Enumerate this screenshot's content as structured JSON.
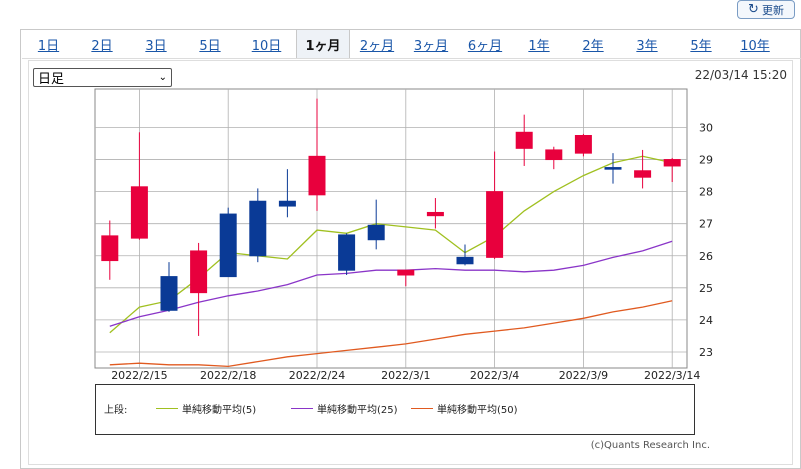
{
  "toolbar": {
    "refresh_label": "更新",
    "refresh_icon": "refresh-icon"
  },
  "tabs": [
    {
      "label": "1日"
    },
    {
      "label": "2日"
    },
    {
      "label": "3日"
    },
    {
      "label": "5日"
    },
    {
      "label": "10日"
    },
    {
      "label": "1ヶ月"
    },
    {
      "label": "2ヶ月"
    },
    {
      "label": "3ヶ月"
    },
    {
      "label": "6ヶ月"
    },
    {
      "label": "1年"
    },
    {
      "label": "2年"
    },
    {
      "label": "3年"
    },
    {
      "label": "5年"
    },
    {
      "label": "10年"
    }
  ],
  "active_tab": "1ヶ月",
  "period_select": {
    "value": "日足"
  },
  "timestamp": "22/03/14 15:20",
  "legend": {
    "prefix": "上段:",
    "items": [
      {
        "label": "単純移動平均(5)",
        "color": "#a0c020"
      },
      {
        "label": "単純移動平均(25)",
        "color": "#8a35c8"
      },
      {
        "label": "単純移動平均(50)",
        "color": "#e05a20"
      }
    ]
  },
  "credit": "(c)Quants Research Inc.",
  "colors": {
    "up": "#e8003d",
    "down": "#0a3a96",
    "grid": "#b0b0b0"
  },
  "chart_data": {
    "type": "candlestick",
    "ylim": [
      22.5,
      31.2
    ],
    "yticks": [
      23,
      24,
      25,
      26,
      27,
      28,
      29,
      30
    ],
    "grid": true,
    "x_tick_labels": [
      {
        "label": "2022/2/15",
        "index": 1
      },
      {
        "label": "2022/2/18",
        "index": 4
      },
      {
        "label": "2022/2/24",
        "index": 7
      },
      {
        "label": "2022/3/1",
        "index": 10
      },
      {
        "label": "2022/3/4",
        "index": 13
      },
      {
        "label": "2022/3/9",
        "index": 16
      },
      {
        "label": "2022/3/14",
        "index": 19
      }
    ],
    "candles": [
      {
        "open": 25.85,
        "high": 27.1,
        "low": 25.25,
        "close": 26.62
      },
      {
        "open": 26.55,
        "high": 29.85,
        "low": 26.5,
        "close": 28.15
      },
      {
        "open": 25.35,
        "high": 25.8,
        "low": 24.25,
        "close": 24.3
      },
      {
        "open": 24.85,
        "high": 26.4,
        "low": 23.5,
        "close": 26.15
      },
      {
        "open": 27.3,
        "high": 27.5,
        "low": 25.35,
        "close": 25.35
      },
      {
        "open": 27.7,
        "high": 28.1,
        "low": 25.8,
        "close": 26.0
      },
      {
        "open": 27.7,
        "high": 28.7,
        "low": 27.2,
        "close": 27.55
      },
      {
        "open": 27.9,
        "high": 30.9,
        "low": 27.4,
        "close": 29.1
      },
      {
        "open": 26.65,
        "high": 26.7,
        "low": 25.4,
        "close": 25.55
      },
      {
        "open": 26.95,
        "high": 27.75,
        "low": 26.2,
        "close": 26.5
      },
      {
        "open": 25.4,
        "high": 25.55,
        "low": 25.05,
        "close": 25.55
      },
      {
        "open": 27.25,
        "high": 27.8,
        "low": 26.85,
        "close": 27.35
      },
      {
        "open": 25.95,
        "high": 26.35,
        "low": 25.7,
        "close": 25.75
      },
      {
        "open": 25.95,
        "high": 29.25,
        "low": 25.9,
        "close": 28.0
      },
      {
        "open": 29.35,
        "high": 30.4,
        "low": 28.8,
        "close": 29.85
      },
      {
        "open": 29.0,
        "high": 29.4,
        "low": 28.7,
        "close": 29.3
      },
      {
        "open": 29.2,
        "high": 29.8,
        "low": 29.1,
        "close": 29.75
      },
      {
        "open": 28.75,
        "high": 29.2,
        "low": 28.25,
        "close": 28.7
      },
      {
        "open": 28.45,
        "high": 29.3,
        "low": 28.1,
        "close": 28.65
      },
      {
        "open": 28.8,
        "high": 29.05,
        "low": 28.3,
        "close": 29.0
      }
    ],
    "series": [
      {
        "name": "単純移動平均(5)",
        "values": [
          23.6,
          24.4,
          24.6,
          25.3,
          26.1,
          26.0,
          25.9,
          26.8,
          26.7,
          27.0,
          26.9,
          26.8,
          26.1,
          26.6,
          27.4,
          28.0,
          28.5,
          28.9,
          29.1,
          28.9
        ]
      },
      {
        "name": "単純移動平均(25)",
        "values": [
          23.8,
          24.1,
          24.3,
          24.55,
          24.75,
          24.9,
          25.1,
          25.4,
          25.45,
          25.55,
          25.55,
          25.6,
          25.55,
          25.55,
          25.5,
          25.55,
          25.7,
          25.95,
          26.15,
          26.45
        ]
      },
      {
        "name": "単純移動平均(50)",
        "values": [
          22.6,
          22.65,
          22.6,
          22.6,
          22.55,
          22.7,
          22.85,
          22.95,
          23.05,
          23.15,
          23.25,
          23.4,
          23.55,
          23.65,
          23.75,
          23.9,
          24.05,
          24.25,
          24.4,
          24.6
        ]
      }
    ]
  }
}
